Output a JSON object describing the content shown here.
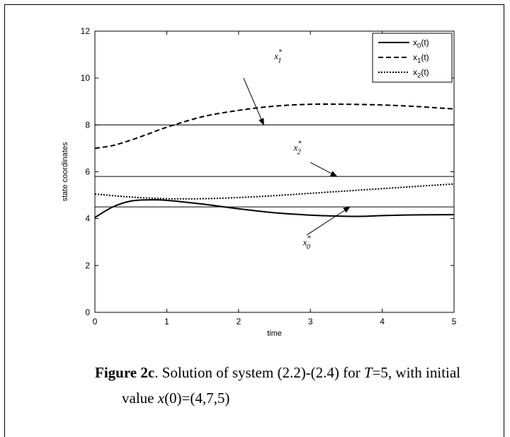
{
  "chart_data": {
    "type": "line",
    "xlabel": "time",
    "ylabel": "state coordinates",
    "xlim": [
      0,
      5
    ],
    "ylim": [
      0,
      12
    ],
    "xticks": [
      "0",
      "1",
      "2",
      "3",
      "4",
      "5"
    ],
    "yticks": [
      "0",
      "2",
      "4",
      "6",
      "8",
      "10",
      "12"
    ],
    "grid": false,
    "legend_position": "top-right",
    "series": [
      {
        "name": "x0(t)",
        "legend_main": "x",
        "legend_sub": "0",
        "legend_suffix": "(t)",
        "style": "solid",
        "color": "#000000",
        "x": [
          0,
          0.25,
          0.5,
          0.75,
          1.0,
          1.5,
          2.0,
          2.5,
          3.0,
          3.5,
          3.75,
          4.0,
          4.5,
          5.0
        ],
        "y": [
          4.05,
          4.5,
          4.75,
          4.8,
          4.78,
          4.62,
          4.42,
          4.25,
          4.15,
          4.1,
          4.1,
          4.13,
          4.16,
          4.17
        ]
      },
      {
        "name": "x1(t)",
        "legend_main": "x",
        "legend_sub": "1",
        "legend_suffix": "(t)",
        "style": "dashed",
        "color": "#000000",
        "x": [
          0,
          0.25,
          0.5,
          0.75,
          1.0,
          1.5,
          2.0,
          2.5,
          3.0,
          3.5,
          4.0,
          4.5,
          5.0
        ],
        "y": [
          7.0,
          7.12,
          7.35,
          7.62,
          7.9,
          8.35,
          8.62,
          8.8,
          8.88,
          8.88,
          8.85,
          8.78,
          8.68
        ]
      },
      {
        "name": "x2(t)",
        "legend_main": "x",
        "legend_sub": "2",
        "legend_suffix": "(t)",
        "style": "dotted",
        "color": "#000000",
        "x": [
          0,
          0.5,
          1.0,
          1.5,
          2.0,
          2.5,
          3.0,
          3.5,
          4.0,
          4.5,
          5.0
        ],
        "y": [
          5.05,
          4.92,
          4.85,
          4.85,
          4.9,
          4.98,
          5.08,
          5.18,
          5.28,
          5.38,
          5.48
        ]
      }
    ],
    "reference_lines": [
      {
        "name": "x1*",
        "y": 8.0
      },
      {
        "name": "x2*",
        "y": 5.8
      },
      {
        "name": "x0*",
        "y": 4.5
      }
    ],
    "annotations": [
      {
        "main": "x",
        "sub": "1",
        "sup": "*",
        "label_x": 2.55,
        "label_y": 10.8,
        "arrow_from": [
          2.07,
          10.0
        ],
        "arrow_to": [
          2.35,
          8.0
        ]
      },
      {
        "main": "x",
        "sub": "2",
        "sup": "*",
        "label_x": 2.82,
        "label_y": 6.9,
        "arrow_from": [
          3.0,
          6.4
        ],
        "arrow_to": [
          3.37,
          5.8
        ]
      },
      {
        "main": "x",
        "sub": "0",
        "sup": "*",
        "label_x": 2.95,
        "label_y": 2.85,
        "arrow_from": [
          2.95,
          3.3
        ],
        "arrow_to": [
          3.55,
          4.5
        ]
      }
    ]
  },
  "caption": {
    "label": "Figure 2c",
    "text_a": ". Solution of system (2.2)-(2.4) for ",
    "T": "T",
    "text_b": "=5, with initial",
    "text_c": "value ",
    "x0": "x",
    "text_d": "(0)=(4,7,5)"
  }
}
